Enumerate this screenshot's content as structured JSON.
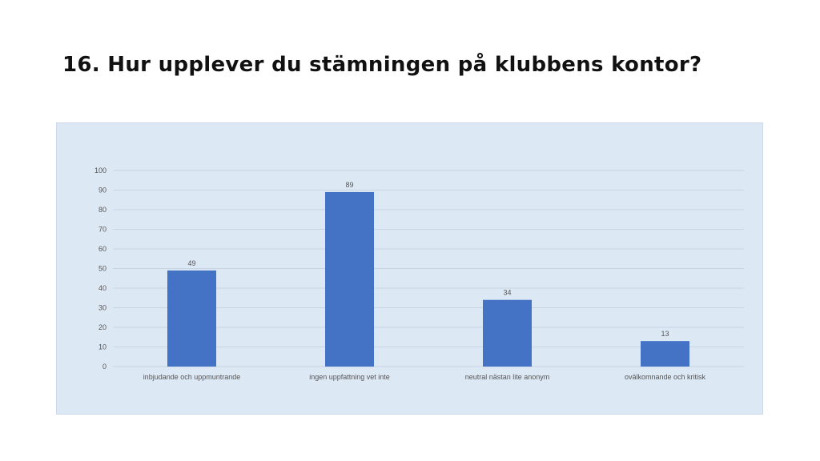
{
  "slide": {
    "title": "16. Hur upplever du stämningen på klubbens kontor?"
  },
  "colors": {
    "bar": "#4472c4",
    "plot_background": "#dde8f5",
    "gridline": "#c8d3e3"
  },
  "chart_data": {
    "type": "bar",
    "title": "",
    "xlabel": "",
    "ylabel": "",
    "categories": [
      "inbjudande och uppmuntrande",
      "ingen uppfattning vet inte",
      "neutral nästan lite anonym",
      "ovälkomnande och kritisk"
    ],
    "values": [
      49,
      89,
      34,
      13
    ],
    "data_labels": [
      "49",
      "89",
      "34",
      "13"
    ],
    "ylim": [
      0,
      100
    ],
    "yticks": [
      0,
      10,
      20,
      30,
      40,
      50,
      60,
      70,
      80,
      90,
      100
    ],
    "grid": true,
    "legend": "none"
  }
}
